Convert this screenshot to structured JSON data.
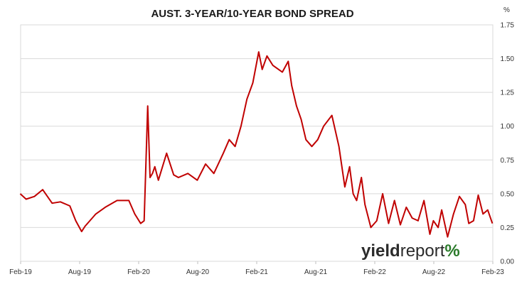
{
  "chart_data": {
    "type": "line",
    "title": "AUST. 3-YEAR/10-YEAR BOND SPREAD",
    "xlabel": "",
    "ylabel": "",
    "y_unit_label": "%",
    "ylim": [
      0,
      1.75
    ],
    "y_ticks": [
      "0.00",
      "0.25",
      "0.50",
      "0.75",
      "1.00",
      "1.25",
      "1.50",
      "1.75"
    ],
    "x_range": [
      "2019-02",
      "2023-02"
    ],
    "x_ticks": [
      "Feb-19",
      "Aug-19",
      "Feb-20",
      "Aug-20",
      "Feb-21",
      "Aug-21",
      "Feb-22",
      "Aug-22",
      "Feb-23"
    ],
    "grid": "horizontal",
    "line_color": "#c00000",
    "series": [
      {
        "x": [
          2019.08,
          2019.13,
          2019.2,
          2019.27,
          2019.35,
          2019.42,
          2019.5,
          2019.55,
          2019.6,
          2019.63,
          2019.67,
          2019.72,
          2019.8,
          2019.9,
          2020.0,
          2020.05,
          2020.1,
          2020.13,
          2020.16,
          2020.18,
          2020.2,
          2020.22,
          2020.25,
          2020.32,
          2020.38,
          2020.42,
          2020.5,
          2020.58,
          2020.65,
          2020.72,
          2020.8,
          2020.85,
          2020.9,
          2020.95,
          2021.0,
          2021.05,
          2021.1,
          2021.13,
          2021.17,
          2021.22,
          2021.3,
          2021.35,
          2021.38,
          2021.42,
          2021.46,
          2021.5,
          2021.55,
          2021.6,
          2021.65,
          2021.72,
          2021.78,
          2021.83,
          2021.87,
          2021.9,
          2021.93,
          2021.97,
          2022.0,
          2022.05,
          2022.1,
          2022.15,
          2022.2,
          2022.25,
          2022.3,
          2022.35,
          2022.4,
          2022.45,
          2022.5,
          2022.55,
          2022.58,
          2022.62,
          2022.65,
          2022.7,
          2022.75,
          2022.8,
          2022.85,
          2022.88,
          2022.92,
          2022.96,
          2023.0,
          2023.04,
          2023.08
        ],
        "values": [
          0.5,
          0.46,
          0.48,
          0.53,
          0.43,
          0.44,
          0.41,
          0.3,
          0.22,
          0.26,
          0.3,
          0.35,
          0.4,
          0.45,
          0.45,
          0.35,
          0.28,
          0.3,
          1.15,
          0.62,
          0.65,
          0.7,
          0.6,
          0.8,
          0.64,
          0.62,
          0.65,
          0.6,
          0.72,
          0.65,
          0.8,
          0.9,
          0.85,
          1.0,
          1.2,
          1.32,
          1.55,
          1.42,
          1.52,
          1.45,
          1.4,
          1.48,
          1.3,
          1.15,
          1.05,
          0.9,
          0.85,
          0.9,
          1.0,
          1.08,
          0.85,
          0.55,
          0.7,
          0.5,
          0.45,
          0.62,
          0.42,
          0.25,
          0.3,
          0.5,
          0.28,
          0.45,
          0.27,
          0.4,
          0.32,
          0.3,
          0.45,
          0.2,
          0.3,
          0.25,
          0.38,
          0.18,
          0.35,
          0.48,
          0.42,
          0.28,
          0.3,
          0.49,
          0.35,
          0.38,
          0.28
        ]
      }
    ]
  },
  "watermark": {
    "part1": "yield",
    "part2": "report",
    "part3": "%"
  }
}
